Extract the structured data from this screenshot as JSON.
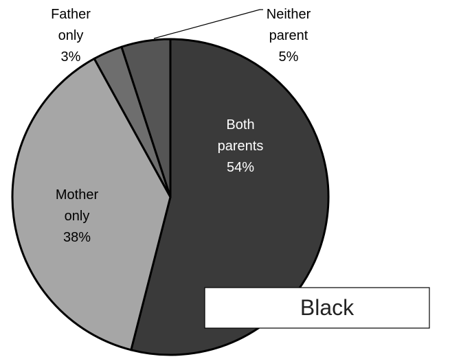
{
  "chart_data": {
    "type": "pie",
    "title": "",
    "group_label": "Black",
    "slices": [
      {
        "label": [
          "Both",
          "parents"
        ],
        "value": 54,
        "value_text": "54%",
        "color": "#3a3a3a",
        "text_color": "#ffffff"
      },
      {
        "label": [
          "Mother",
          "only"
        ],
        "value": 38,
        "value_text": "38%",
        "color": "#a6a6a6",
        "text_color": "#000000"
      },
      {
        "label": [
          "Father",
          "only"
        ],
        "value": 3,
        "value_text": "3%",
        "color": "#6e6e6e",
        "text_color": "#000000"
      },
      {
        "label": [
          "Neither",
          "parent"
        ],
        "value": 5,
        "value_text": "5%",
        "color": "#555555",
        "text_color": "#000000"
      }
    ],
    "start_angle": "12 o'clock",
    "direction": "clockwise",
    "legend": "none",
    "slice_border_color": "#000000"
  }
}
